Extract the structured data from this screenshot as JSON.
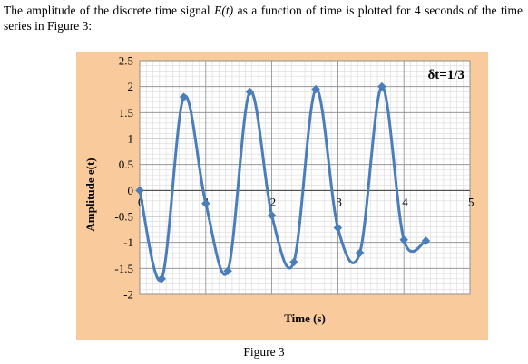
{
  "intro": {
    "part1": "The amplitude of the discrete time signal ",
    "signal": "E(t)",
    "part2": " as a function of time is plotted for 4 seconds of the time series in Figure 3:"
  },
  "caption": "Figure 3",
  "colors": {
    "background": "#f9cb9c",
    "plot_area": "#ffffff",
    "series": "#4a7ebb",
    "grid": "#bfbfbf"
  },
  "chart_data": {
    "type": "scatter",
    "title": "",
    "annotation": "δt=1/3",
    "xlabel": "Time (s)",
    "ylabel": "Amplitude e(t)",
    "xlim": [
      0,
      5
    ],
    "ylim": [
      -2,
      2.5
    ],
    "x_ticks": [
      "0",
      "1",
      "2",
      "3",
      "4",
      "5"
    ],
    "y_ticks": [
      "2.5",
      "2",
      "1.5",
      "1",
      "0.5",
      "0",
      "-0.5",
      "-1",
      "-1.5",
      "-2"
    ],
    "grid": true,
    "smoothed_line": true,
    "series": [
      {
        "x": [
          0,
          0.333,
          0.667,
          1,
          1.333,
          1.667,
          2,
          2.333,
          2.667,
          3,
          3.333,
          3.667,
          4,
          4.333
        ],
        "y": [
          0,
          -1.7,
          1.8,
          -0.25,
          -1.55,
          1.9,
          -0.48,
          -1.38,
          1.95,
          -0.72,
          -1.2,
          2.0,
          -0.95,
          -0.97
        ]
      }
    ]
  }
}
